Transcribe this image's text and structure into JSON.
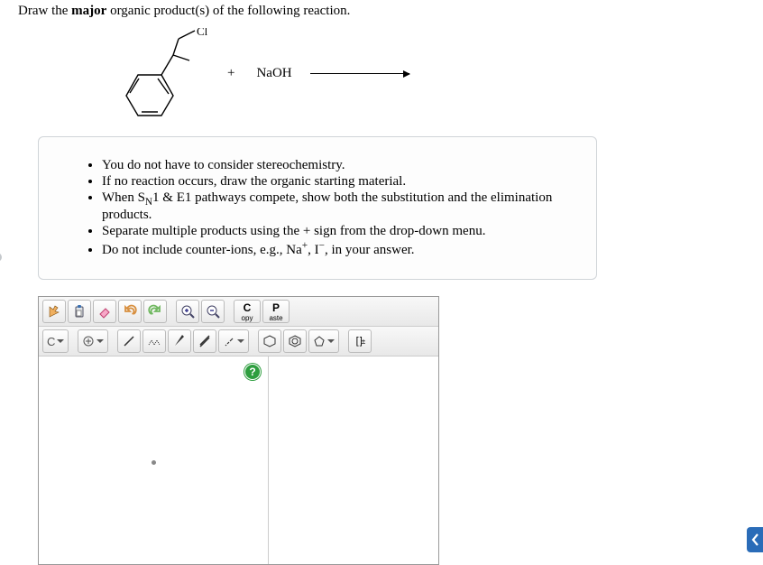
{
  "prompt": {
    "pre": "Draw the ",
    "bold": "major",
    "post": " organic product(s) of the following reaction."
  },
  "reaction": {
    "plus": "+",
    "reagent": "NaOH"
  },
  "instructions": [
    "You do not have to consider stereochemistry.",
    "If no reaction occurs, draw the organic starting material.",
    "When S<sub>N</sub>1 & E1 pathways compete, show both the substitution and the elimination products.",
    "Separate multiple products using the + sign from the drop-down menu.",
    "Do not include counter-ions, e.g., Na<sup>+</sup>, I<sup>−</sup>, in your answer."
  ],
  "editor": {
    "toolbar1": {
      "copy": {
        "big": "C",
        "sm": "opy"
      },
      "paste": {
        "big": "P",
        "sm": "aste"
      }
    },
    "toolbar2": {
      "element": "C",
      "bracket": "[ ]",
      "charge": "±"
    },
    "help": "?"
  },
  "colors": {
    "infoBorder": "#d0d4d8",
    "helpGreen": "#2e9e3f",
    "feedbackBlue": "#2a6cb8"
  }
}
